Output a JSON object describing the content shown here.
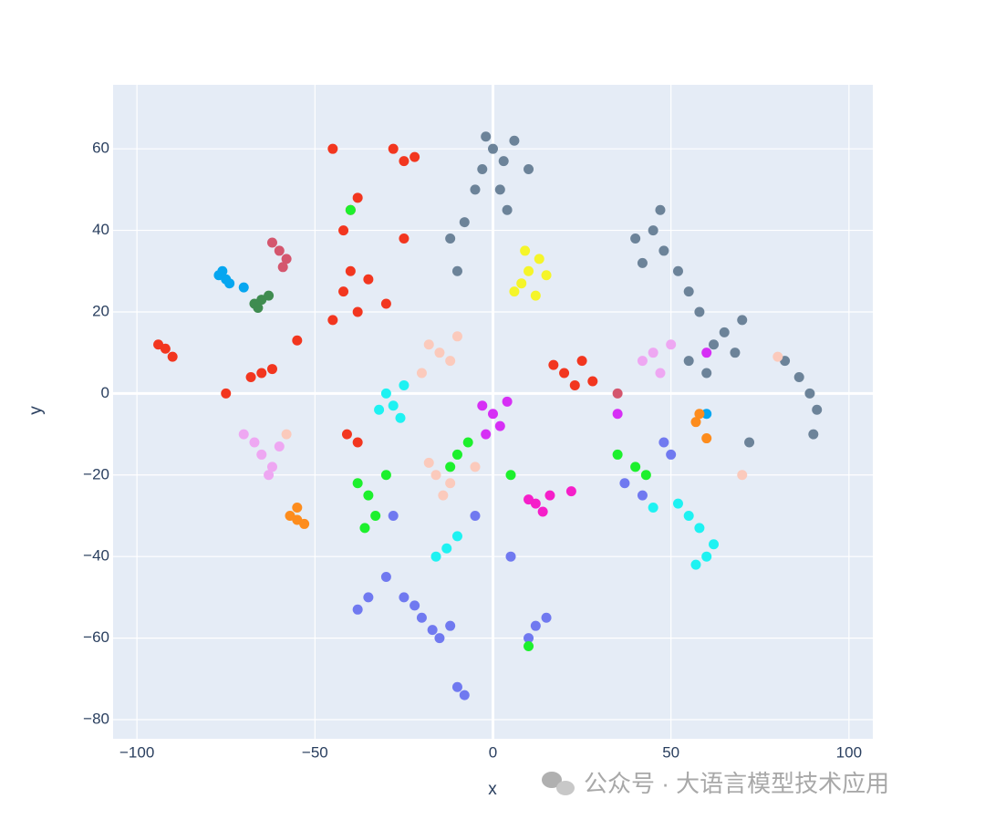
{
  "chart_data": {
    "type": "scatter",
    "x_label": "x",
    "y_label": "y",
    "xlim": [
      -106.7,
      106.7
    ],
    "ylim": [
      -84.7,
      75.7
    ],
    "xticks": [
      {
        "value": -100,
        "label": "−100"
      },
      {
        "value": -50,
        "label": "−50"
      },
      0,
      50,
      100
    ],
    "yticks": [
      {
        "value": -80,
        "label": "−80"
      },
      {
        "value": -60,
        "label": "−60"
      },
      {
        "value": -40,
        "label": "−40"
      },
      {
        "value": -20,
        "label": "−20"
      },
      0,
      20,
      40,
      60
    ],
    "grid": true,
    "series": [
      {
        "color": "#6c8399",
        "x": [
          0,
          -3,
          3,
          -5,
          2,
          -8,
          -12,
          10,
          -2,
          4,
          -10,
          6,
          45,
          48,
          42,
          52,
          55,
          47,
          40,
          58,
          62,
          65,
          60,
          68,
          70,
          55,
          82,
          86,
          89,
          91,
          90,
          72
        ],
        "values": [
          60,
          55,
          57,
          50,
          50,
          42,
          38,
          55,
          63,
          45,
          30,
          62,
          40,
          35,
          32,
          30,
          25,
          45,
          38,
          20,
          12,
          15,
          5,
          10,
          18,
          8,
          8,
          4,
          0,
          -4,
          -10,
          -12
        ]
      },
      {
        "color": "#f2361f",
        "x": [
          -42,
          -38,
          -45,
          -35,
          -40,
          -30,
          -25,
          -28,
          -22,
          -40,
          -38,
          -42,
          -45,
          -25,
          -92,
          -90,
          -94,
          -65,
          -68,
          -62,
          20,
          23,
          17,
          25,
          28,
          -55,
          -38,
          -41,
          -75
        ],
        "values": [
          25,
          20,
          18,
          28,
          30,
          22,
          57,
          60,
          58,
          45,
          48,
          40,
          60,
          38,
          11,
          9,
          12,
          5,
          4,
          6,
          5,
          2,
          7,
          8,
          3,
          13,
          -12,
          -10,
          0
        ]
      },
      {
        "color": "#f5f52a",
        "x": [
          10,
          8,
          13,
          6,
          12,
          15,
          9
        ],
        "values": [
          30,
          27,
          33,
          25,
          24,
          29,
          35
        ]
      },
      {
        "color": "#fbcabc",
        "x": [
          -15,
          -18,
          -12,
          -20,
          -10,
          -16,
          -12,
          -18,
          -14,
          -5,
          70,
          -58,
          80
        ],
        "values": [
          10,
          12,
          8,
          5,
          14,
          -20,
          -22,
          -17,
          -25,
          -18,
          -20,
          -10,
          9
        ]
      },
      {
        "color": "#1ef2f2",
        "x": [
          -28,
          -30,
          -26,
          -32,
          -25,
          55,
          52,
          58,
          60,
          62,
          57,
          -13,
          -10,
          -16,
          45
        ],
        "values": [
          -3,
          0,
          -6,
          -4,
          2,
          -30,
          -27,
          -33,
          -40,
          -37,
          -42,
          -38,
          -35,
          -40,
          -28
        ]
      },
      {
        "color": "#d62ff5",
        "x": [
          0,
          -3,
          2,
          4,
          -2,
          60,
          35
        ],
        "values": [
          -5,
          -3,
          -8,
          -2,
          -10,
          10,
          -5
        ]
      },
      {
        "color": "#f51fc9",
        "x": [
          12,
          10,
          14,
          16,
          22
        ],
        "values": [
          -27,
          -26,
          -29,
          -25,
          -24
        ]
      },
      {
        "color": "#7079f0",
        "x": [
          -20,
          -22,
          -17,
          -25,
          -12,
          -15,
          -35,
          -38,
          -30,
          -10,
          -8,
          10,
          12,
          15,
          50,
          48,
          42,
          37,
          5,
          -5,
          -28
        ],
        "values": [
          -55,
          -52,
          -58,
          -50,
          -57,
          -60,
          -50,
          -53,
          -45,
          -72,
          -74,
          -60,
          -57,
          -55,
          -15,
          -12,
          -25,
          -22,
          -40,
          -30,
          -30
        ]
      },
      {
        "color": "#1df02d",
        "x": [
          -35,
          -38,
          -33,
          -36,
          -30,
          -10,
          -7,
          -12,
          40,
          35,
          43,
          5,
          10,
          -40
        ],
        "values": [
          -25,
          -22,
          -30,
          -33,
          -20,
          -15,
          -12,
          -18,
          -18,
          -15,
          -20,
          -20,
          -62,
          45
        ]
      },
      {
        "color": "#eea7f2",
        "x": [
          -65,
          -67,
          -62,
          -70,
          -63,
          -60,
          45,
          42,
          47,
          50
        ],
        "values": [
          -15,
          -12,
          -18,
          -10,
          -20,
          -13,
          10,
          8,
          5,
          12
        ]
      },
      {
        "color": "#d4566e",
        "x": [
          -60,
          -58,
          -62,
          -59,
          35
        ],
        "values": [
          35,
          33,
          37,
          31,
          0
        ]
      },
      {
        "color": "#06a6f0",
        "x": [
          -75,
          -77,
          -74,
          -76,
          60,
          -70
        ],
        "values": [
          28,
          29,
          27,
          30,
          -5,
          26
        ]
      },
      {
        "color": "#3f8c50",
        "x": [
          -65,
          -67,
          -63,
          -66
        ],
        "values": [
          23,
          22,
          24,
          21
        ]
      },
      {
        "color": "#fd8c1d",
        "x": [
          -55,
          -57,
          -53,
          -55,
          57,
          58,
          60
        ],
        "values": [
          -31,
          -30,
          -32,
          -28,
          -7,
          -5,
          -11
        ]
      }
    ]
  },
  "watermark": "公众号 · 大语言模型技术应用"
}
